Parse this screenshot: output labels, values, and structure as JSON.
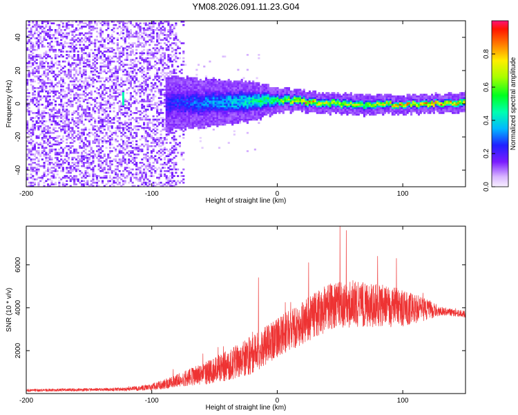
{
  "chart_data": [
    {
      "type": "heatmap",
      "title": "YM08.2026.091.11.23.G04",
      "xlabel": "Height of straight line (km)",
      "ylabel": "Frequency (Hz)",
      "xlim": [
        -200,
        150
      ],
      "ylim": [
        -50,
        50
      ],
      "xticks": [
        -200,
        -100,
        0,
        100
      ],
      "yticks": [
        -40,
        -20,
        0,
        20,
        40
      ],
      "colorbar": {
        "label": "Normalized spectral amplitude",
        "ticks": [
          0.0,
          0.2,
          0.4,
          0.6,
          0.8
        ],
        "range": [
          0,
          1
        ]
      },
      "features": {
        "noise_region_x": [
          -200,
          -75
        ],
        "signal_ridge": [
          {
            "x": -85,
            "y": 0,
            "spread": 6,
            "amplitude": 0.25
          },
          {
            "x": -50,
            "y": 0,
            "spread": 5,
            "amplitude": 0.35
          },
          {
            "x": -20,
            "y": 1,
            "spread": 4,
            "amplitude": 0.45
          },
          {
            "x": 0,
            "y": 2,
            "spread": 2,
            "amplitude": 0.6
          },
          {
            "x": 20,
            "y": 1,
            "spread": 1.5,
            "amplitude": 0.8
          },
          {
            "x": 40,
            "y": 0,
            "spread": 1.5,
            "amplitude": 0.75
          },
          {
            "x": 70,
            "y": -1,
            "spread": 1.5,
            "amplitude": 0.7
          },
          {
            "x": 100,
            "y": -1,
            "spread": 1.2,
            "amplitude": 0.85
          },
          {
            "x": 130,
            "y": 0,
            "spread": 1.2,
            "amplitude": 0.9
          },
          {
            "x": 150,
            "y": 0,
            "spread": 1.5,
            "amplitude": 0.75
          }
        ],
        "spike": {
          "x": -123,
          "y": 3,
          "amplitude": 0.45
        }
      }
    },
    {
      "type": "line",
      "title": "",
      "xlabel": "Height of straight line (km)",
      "ylabel": "SNR (10 * v/v)",
      "xlim": [
        -200,
        150
      ],
      "ylim": [
        0,
        7800
      ],
      "xticks": [
        -200,
        -100,
        0,
        100
      ],
      "yticks": [
        2000,
        4000,
        6000
      ],
      "color": "#ee3333",
      "envelope": [
        {
          "x": -200,
          "mean": 150,
          "spread": 60
        },
        {
          "x": -120,
          "mean": 200,
          "spread": 80
        },
        {
          "x": -100,
          "mean": 300,
          "spread": 150
        },
        {
          "x": -80,
          "mean": 600,
          "spread": 300
        },
        {
          "x": -60,
          "mean": 900,
          "spread": 500
        },
        {
          "x": -40,
          "mean": 1300,
          "spread": 700
        },
        {
          "x": -20,
          "mean": 1800,
          "spread": 900
        },
        {
          "x": 0,
          "mean": 2600,
          "spread": 900
        },
        {
          "x": 20,
          "mean": 3300,
          "spread": 1000
        },
        {
          "x": 40,
          "mean": 4000,
          "spread": 1100
        },
        {
          "x": 60,
          "mean": 4200,
          "spread": 1100
        },
        {
          "x": 80,
          "mean": 4100,
          "spread": 1000
        },
        {
          "x": 100,
          "mean": 4000,
          "spread": 900
        },
        {
          "x": 120,
          "mean": 3900,
          "spread": 500
        },
        {
          "x": 130,
          "mean": 3850,
          "spread": 200
        },
        {
          "x": 150,
          "mean": 3700,
          "spread": 150
        }
      ],
      "peaks": [
        {
          "x": -15,
          "y": 5400
        },
        {
          "x": 25,
          "y": 6100
        },
        {
          "x": 50,
          "y": 7800
        },
        {
          "x": 55,
          "y": 7600
        },
        {
          "x": 80,
          "y": 6400
        },
        {
          "x": 95,
          "y": 6300
        }
      ]
    }
  ]
}
